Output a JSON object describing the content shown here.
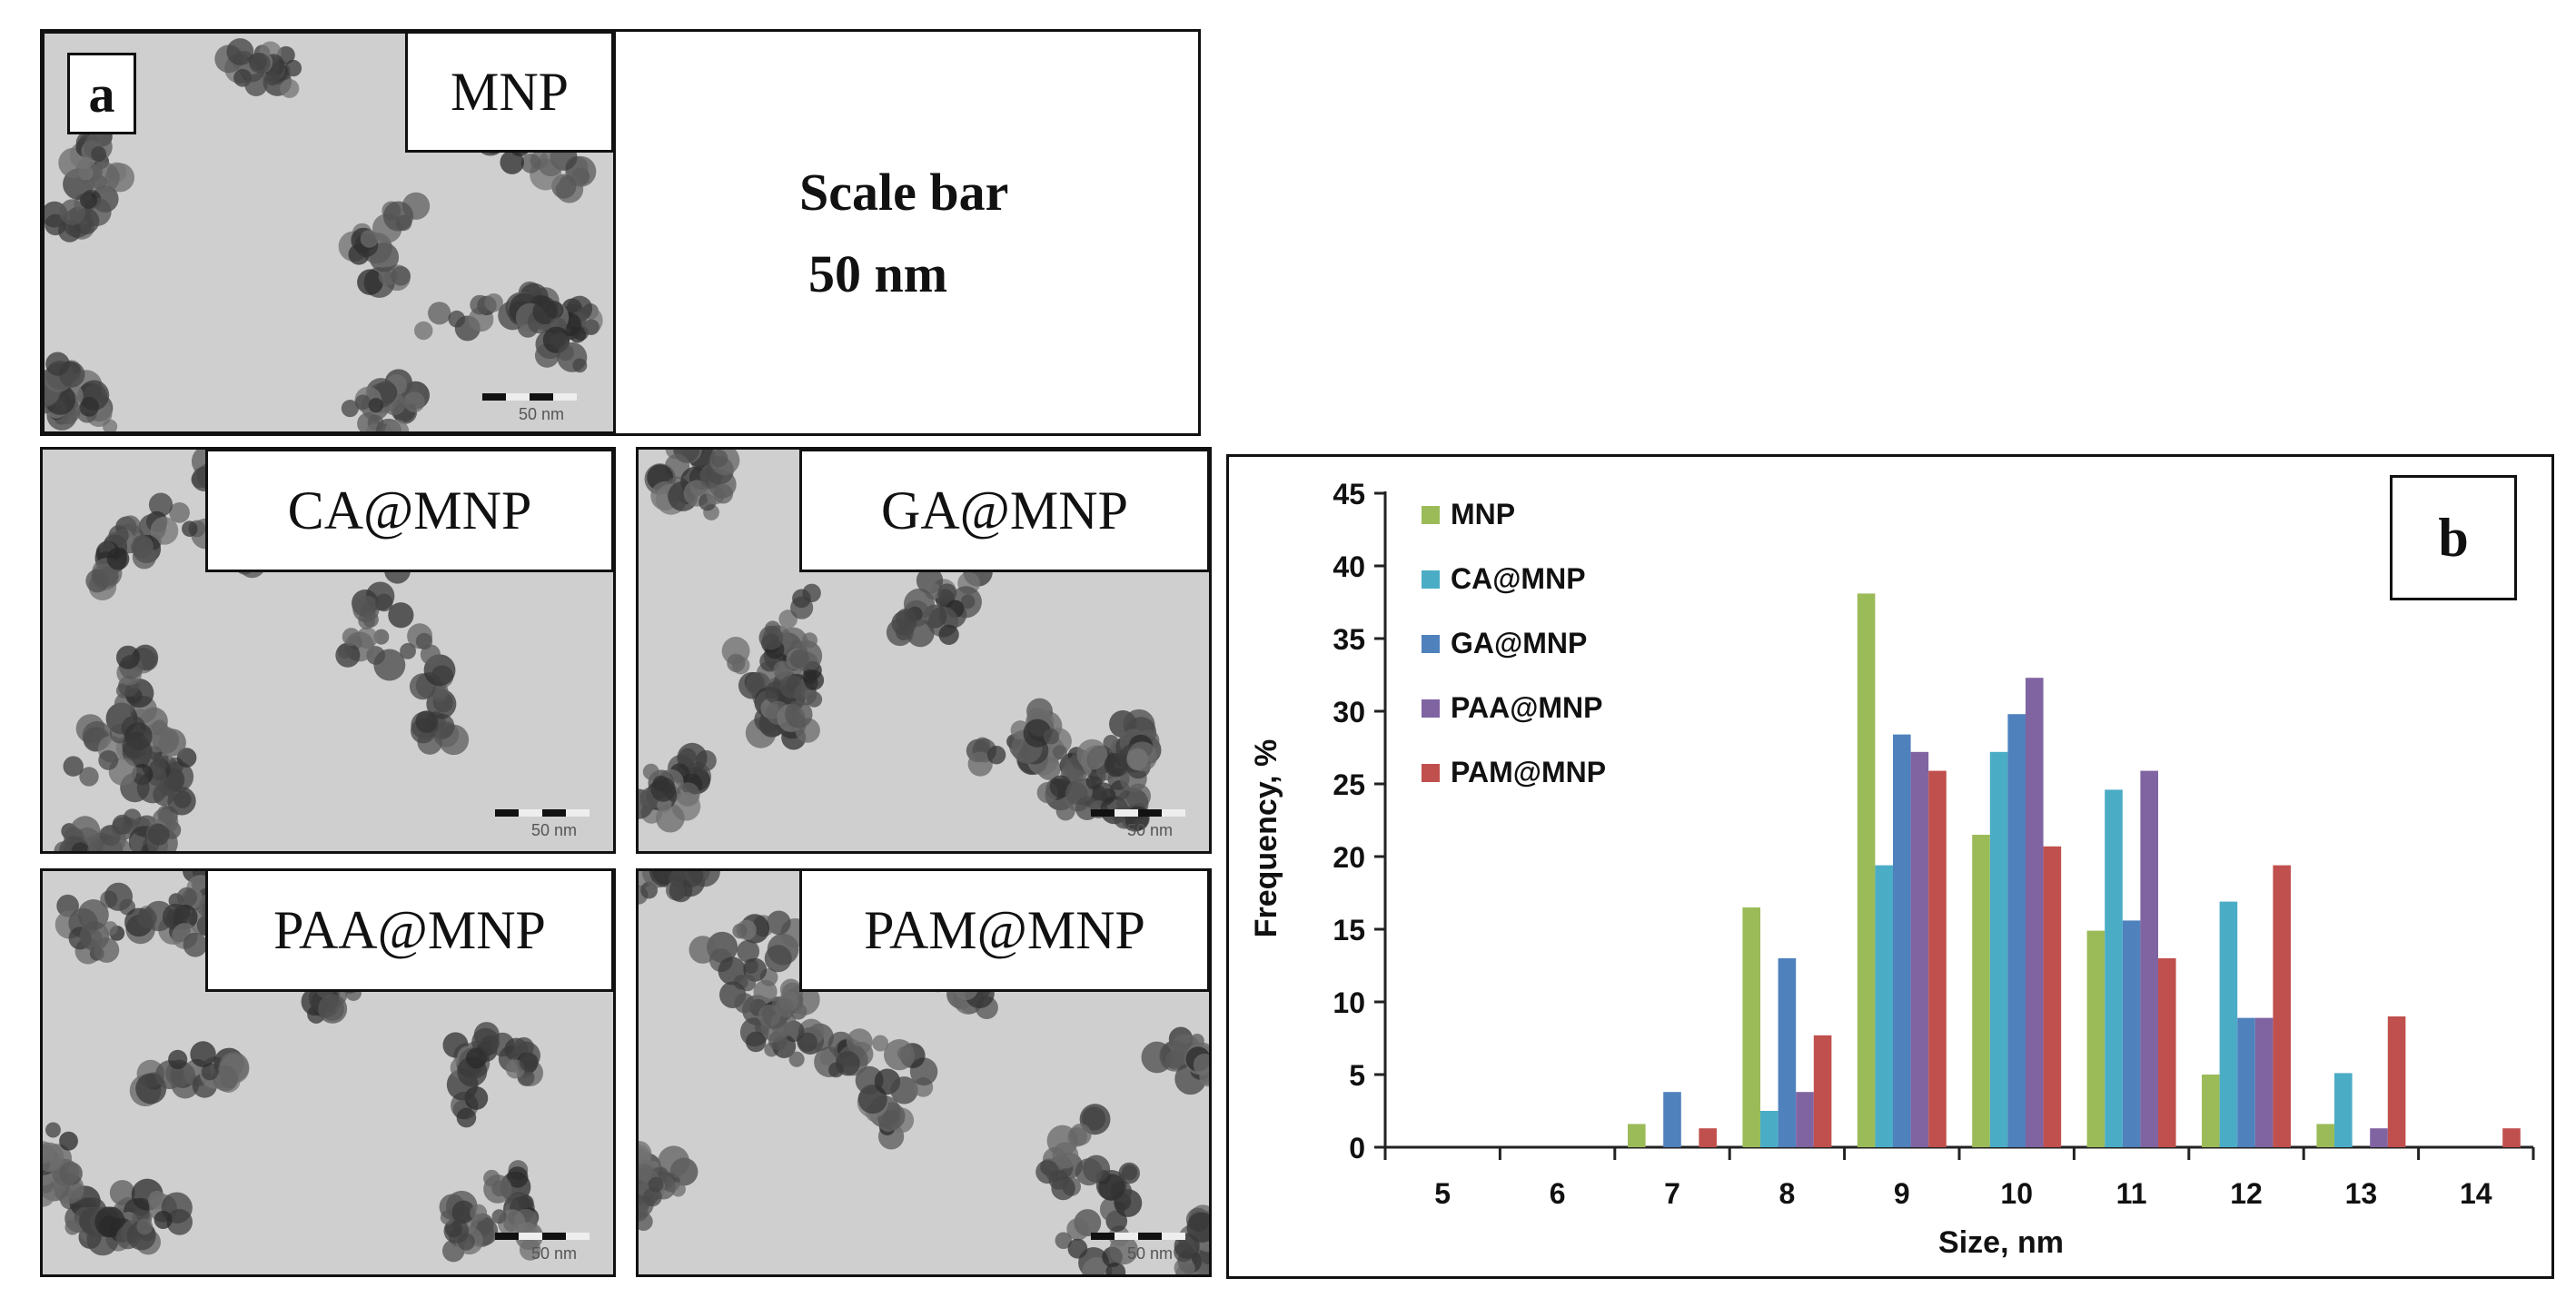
{
  "panel_a": {
    "letter": "a",
    "scale_note_line1": "Scale bar",
    "scale_note_line2": "50 nm",
    "images": [
      {
        "label": "MNP",
        "scalebar": "50 nm"
      },
      {
        "label": "CA@MNP",
        "scalebar": "50 nm"
      },
      {
        "label": "GA@MNP",
        "scalebar": "50 nm"
      },
      {
        "label": "PAA@MNP",
        "scalebar": "50 nm"
      },
      {
        "label": "PAM@MNP",
        "scalebar": "50 nm"
      }
    ]
  },
  "panel_b": {
    "letter": "b"
  },
  "chart_data": {
    "type": "bar",
    "title": "",
    "xlabel": "Size, nm",
    "ylabel": "Frequency, %",
    "ylim": [
      0,
      45
    ],
    "yticks": [
      0,
      5,
      10,
      15,
      20,
      25,
      30,
      35,
      40,
      45
    ],
    "categories": [
      "5",
      "6",
      "7",
      "8",
      "9",
      "10",
      "11",
      "12",
      "13",
      "14"
    ],
    "legend_position": "top-left",
    "grid": false,
    "series": [
      {
        "name": "MNP",
        "color": "#9bbb59",
        "values": [
          0,
          0,
          1.6,
          16.5,
          38.1,
          21.5,
          14.9,
          5.0,
          1.6,
          0
        ]
      },
      {
        "name": "CA@MNP",
        "color": "#4bacc6",
        "values": [
          0,
          0,
          0,
          2.5,
          19.4,
          27.2,
          24.6,
          16.9,
          5.1,
          0
        ]
      },
      {
        "name": "GA@MNP",
        "color": "#4f81bd",
        "values": [
          0,
          0,
          3.8,
          13.0,
          28.4,
          29.8,
          15.6,
          8.9,
          0,
          0
        ]
      },
      {
        "name": "PAA@MNP",
        "color": "#8064a2",
        "values": [
          0,
          0,
          0,
          3.8,
          27.2,
          32.3,
          25.9,
          8.9,
          1.3,
          0
        ]
      },
      {
        "name": "PAM@MNP",
        "color": "#c0504d",
        "values": [
          0,
          0,
          1.3,
          7.7,
          25.9,
          20.7,
          13.0,
          19.4,
          9.0,
          1.3
        ]
      }
    ]
  }
}
